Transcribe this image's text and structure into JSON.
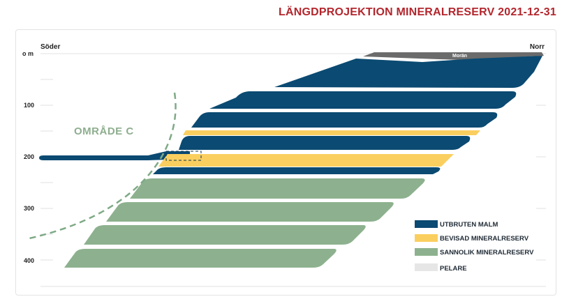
{
  "title": "LÄNGDPROJEKTION MINERALRESERV 2021-12-31",
  "direction": {
    "left": "Söder",
    "right": "Norr"
  },
  "depth_axis": {
    "unit_label": "o m",
    "ticks": [
      "100",
      "200",
      "300",
      "400"
    ]
  },
  "area_label": "OMRÅDE C",
  "moran_label": "Morän",
  "legend": [
    {
      "label": "UTBRUTEN MALM",
      "color": "#0b4a72"
    },
    {
      "label": "BEVISAD MINERALRESERV",
      "color": "#fbcf5f"
    },
    {
      "label": "SANNOLIK MINERALRESERV",
      "color": "#8db18e"
    },
    {
      "label": "PELARE",
      "color": "#e6e6e6"
    }
  ],
  "colors": {
    "title": "#b3262d",
    "moran": "#6b6b6b",
    "dashed": "#7eaa86"
  }
}
